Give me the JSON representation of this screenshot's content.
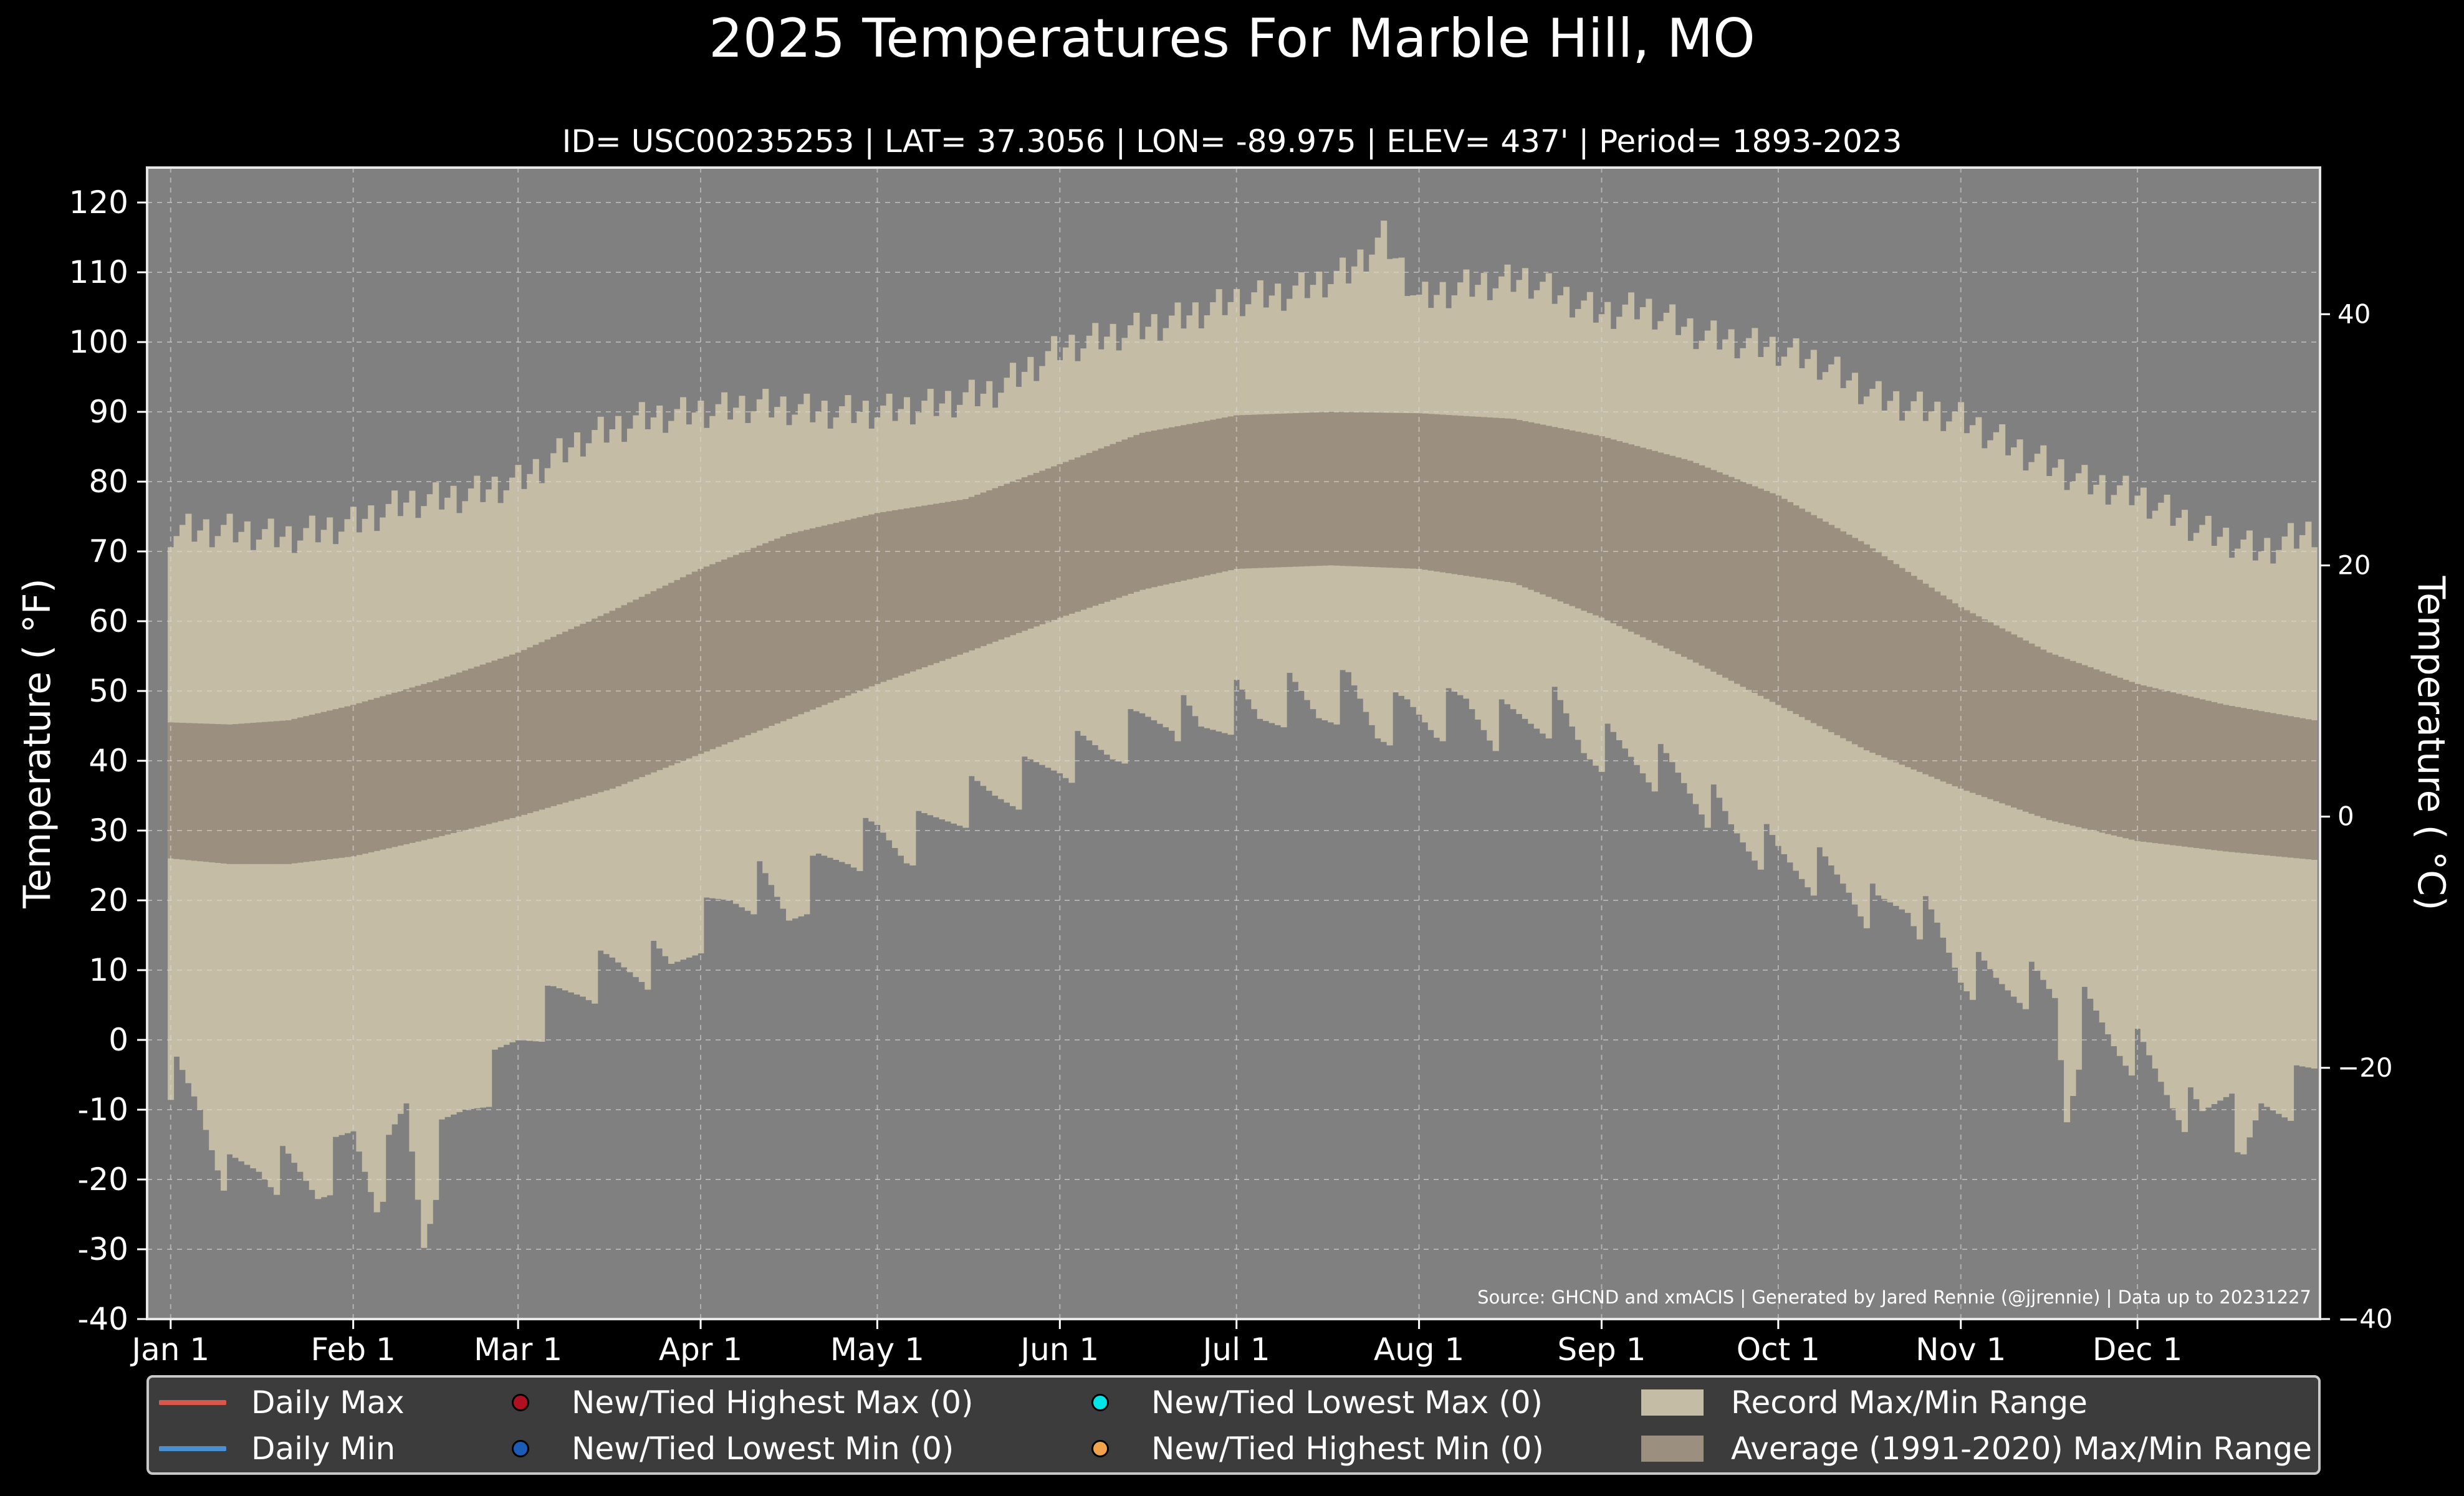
{
  "title": "2025 Temperatures For Marble Hill, MO",
  "subtitle": "ID= USC00235253 | LAT= 37.3056 | LON= -89.975 | ELEV= 437' | Period= 1893-2023",
  "source": "Source: GHCND and xmACIS | Generated by Jared Rennie (@jjrennie) | Data up to 20231227",
  "colors": {
    "background": "#000000",
    "plot_bg": "#808080",
    "record_range": "#c4bca4",
    "average_range": "#9b9080",
    "daily_max": "#d9574a",
    "daily_min": "#4a8fd1",
    "new_highest_max": "#b01020",
    "new_lowest_min": "#1a5cb8",
    "new_lowest_max": "#00e5e5",
    "new_highest_min": "#f2a24a"
  },
  "legend": [
    {
      "kind": "line",
      "label": "Daily Max",
      "color": "#d9574a"
    },
    {
      "kind": "line",
      "label": "Daily Min",
      "color": "#4a8fd1"
    },
    {
      "kind": "dot",
      "label": "New/Tied Highest Max (0)",
      "color": "#b01020"
    },
    {
      "kind": "dot",
      "label": "New/Tied Lowest Min (0)",
      "color": "#1a5cb8"
    },
    {
      "kind": "dot",
      "label": "New/Tied Lowest Max (0)",
      "color": "#00e5e5"
    },
    {
      "kind": "dot",
      "label": "New/Tied Highest Min (0)",
      "color": "#f2a24a"
    },
    {
      "kind": "patch",
      "label": "Record Max/Min Range",
      "color": "#c4bca4"
    },
    {
      "kind": "patch",
      "label": "Average (1991-2020) Max/Min Range",
      "color": "#9b9080"
    }
  ],
  "chart_data": {
    "type": "area",
    "title": "2025 Temperatures For Marble Hill, MO",
    "ylabel": "Temperature ( °F)",
    "ylabel_right": "Temperature ( °C)",
    "ylim": [
      -40,
      125
    ],
    "ylim_right": [
      -40,
      51.67
    ],
    "yticks": [
      -40,
      -30,
      -20,
      -10,
      0,
      10,
      20,
      30,
      40,
      50,
      60,
      70,
      80,
      90,
      100,
      110,
      120
    ],
    "yticks_right": [
      -40,
      -20,
      0,
      20,
      40
    ],
    "xlim": [
      -4,
      365
    ],
    "x_ticks": [
      {
        "day": 0,
        "label": "Jan 1"
      },
      {
        "day": 31,
        "label": "Feb 1"
      },
      {
        "day": 59,
        "label": "Mar 1"
      },
      {
        "day": 90,
        "label": "Apr 1"
      },
      {
        "day": 120,
        "label": "May 1"
      },
      {
        "day": 151,
        "label": "Jun 1"
      },
      {
        "day": 181,
        "label": "Jul 1"
      },
      {
        "day": 212,
        "label": "Aug 1"
      },
      {
        "day": 243,
        "label": "Sep 1"
      },
      {
        "day": 273,
        "label": "Oct 1"
      },
      {
        "day": 304,
        "label": "Nov 1"
      },
      {
        "day": 334,
        "label": "Dec 1"
      }
    ],
    "grid": true,
    "legend_position": "bottom",
    "series": [
      {
        "name": "Record Max/Min Range",
        "record_max_anchors": [
          [
            0,
            73
          ],
          [
            10,
            73
          ],
          [
            20,
            72
          ],
          [
            31,
            74
          ],
          [
            40,
            77
          ],
          [
            50,
            78
          ],
          [
            59,
            80
          ],
          [
            70,
            86
          ],
          [
            80,
            89
          ],
          [
            90,
            90
          ],
          [
            100,
            91
          ],
          [
            110,
            90
          ],
          [
            120,
            90
          ],
          [
            130,
            91
          ],
          [
            140,
            93
          ],
          [
            151,
            99
          ],
          [
            160,
            101
          ],
          [
            170,
            103
          ],
          [
            181,
            106
          ],
          [
            190,
            107
          ],
          [
            200,
            110
          ],
          [
            206,
            115
          ],
          [
            212,
            106
          ],
          [
            220,
            108
          ],
          [
            230,
            109
          ],
          [
            243,
            104
          ],
          [
            250,
            105
          ],
          [
            260,
            101
          ],
          [
            273,
            99
          ],
          [
            280,
            97
          ],
          [
            290,
            92
          ],
          [
            304,
            89
          ],
          [
            315,
            84
          ],
          [
            325,
            80
          ],
          [
            334,
            78
          ],
          [
            345,
            73
          ],
          [
            355,
            70
          ],
          [
            364,
            73
          ]
        ],
        "record_min_anchors": [
          [
            0,
            -5
          ],
          [
            5,
            -10
          ],
          [
            10,
            -20
          ],
          [
            15,
            -18
          ],
          [
            20,
            -19
          ],
          [
            25,
            -21
          ],
          [
            31,
            -14
          ],
          [
            35,
            -22
          ],
          [
            40,
            -10
          ],
          [
            43,
            -28
          ],
          [
            46,
            -15
          ],
          [
            50,
            -10
          ],
          [
            55,
            -5
          ],
          [
            59,
            0
          ],
          [
            65,
            5
          ],
          [
            70,
            8
          ],
          [
            75,
            10
          ],
          [
            80,
            11
          ],
          [
            85,
            10
          ],
          [
            90,
            16
          ],
          [
            95,
            20
          ],
          [
            100,
            22
          ],
          [
            105,
            18
          ],
          [
            110,
            24
          ],
          [
            115,
            27
          ],
          [
            120,
            29
          ],
          [
            125,
            28
          ],
          [
            130,
            31
          ],
          [
            135,
            34
          ],
          [
            140,
            35
          ],
          [
            145,
            37
          ],
          [
            151,
            40
          ],
          [
            160,
            42
          ],
          [
            165,
            45
          ],
          [
            170,
            47
          ],
          [
            175,
            44
          ],
          [
            181,
            48
          ],
          [
            185,
            46
          ],
          [
            190,
            49
          ],
          [
            195,
            47
          ],
          [
            200,
            50
          ],
          [
            205,
            45
          ],
          [
            210,
            47
          ],
          [
            215,
            46
          ],
          [
            220,
            48
          ],
          [
            225,
            45
          ],
          [
            230,
            46
          ],
          [
            235,
            47
          ],
          [
            240,
            42
          ],
          [
            243,
            42
          ],
          [
            250,
            40
          ],
          [
            255,
            38
          ],
          [
            260,
            35
          ],
          [
            265,
            30
          ],
          [
            270,
            28
          ],
          [
            273,
            26
          ],
          [
            280,
            24
          ],
          [
            285,
            22
          ],
          [
            290,
            18
          ],
          [
            295,
            20
          ],
          [
            300,
            15
          ],
          [
            304,
            10
          ],
          [
            310,
            8
          ],
          [
            315,
            8
          ],
          [
            320,
            6
          ],
          [
            322,
            -10
          ],
          [
            325,
            4
          ],
          [
            330,
            0
          ],
          [
            334,
            -2
          ],
          [
            340,
            -8
          ],
          [
            345,
            -12
          ],
          [
            350,
            -5
          ],
          [
            352,
            -20
          ],
          [
            355,
            -10
          ],
          [
            360,
            -8
          ],
          [
            364,
            -5
          ]
        ]
      },
      {
        "name": "Average (1991-2020) Max/Min Range",
        "avg_max_anchors": [
          [
            0,
            45.5
          ],
          [
            10,
            45.2
          ],
          [
            20,
            45.8
          ],
          [
            31,
            48
          ],
          [
            45,
            51.5
          ],
          [
            59,
            55.5
          ],
          [
            75,
            61.5
          ],
          [
            90,
            67.5
          ],
          [
            105,
            72.5
          ],
          [
            120,
            75.5
          ],
          [
            135,
            77.5
          ],
          [
            151,
            82.5
          ],
          [
            165,
            87
          ],
          [
            181,
            89.5
          ],
          [
            197,
            90
          ],
          [
            212,
            89.8
          ],
          [
            228,
            89
          ],
          [
            243,
            86.5
          ],
          [
            258,
            83
          ],
          [
            273,
            78
          ],
          [
            288,
            71
          ],
          [
            304,
            62
          ],
          [
            319,
            55.5
          ],
          [
            334,
            51
          ],
          [
            349,
            48
          ],
          [
            364,
            45.8
          ]
        ],
        "avg_min_anchors": [
          [
            0,
            26
          ],
          [
            10,
            25.2
          ],
          [
            20,
            25.2
          ],
          [
            31,
            26.3
          ],
          [
            45,
            29
          ],
          [
            59,
            32
          ],
          [
            75,
            36
          ],
          [
            90,
            41
          ],
          [
            105,
            46
          ],
          [
            120,
            51
          ],
          [
            135,
            55.5
          ],
          [
            151,
            60.5
          ],
          [
            165,
            64.5
          ],
          [
            181,
            67.5
          ],
          [
            197,
            68
          ],
          [
            212,
            67.5
          ],
          [
            228,
            65.5
          ],
          [
            243,
            60.5
          ],
          [
            258,
            54.5
          ],
          [
            273,
            48
          ],
          [
            288,
            41.5
          ],
          [
            304,
            36
          ],
          [
            319,
            31.5
          ],
          [
            334,
            28.5
          ],
          [
            349,
            27
          ],
          [
            364,
            25.8
          ]
        ]
      }
    ]
  }
}
